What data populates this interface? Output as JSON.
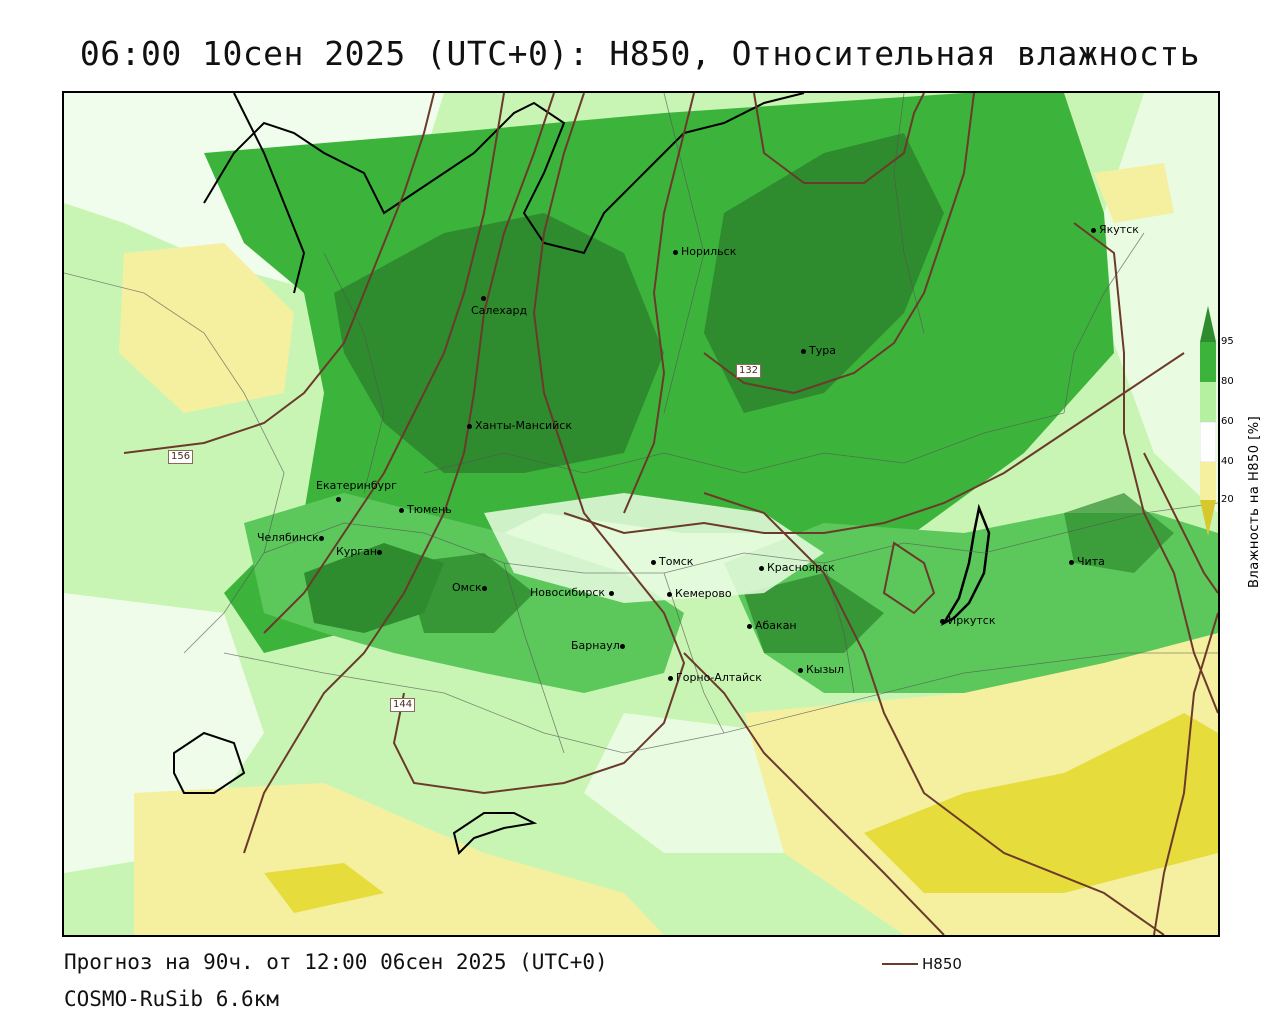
{
  "title": "06:00 10сен 2025 (UTC+0): H850, Относительная влажность",
  "map": {
    "cities": [
      {
        "name": "Салехард"
      },
      {
        "name": "Норильск"
      },
      {
        "name": "Якутск"
      },
      {
        "name": "Тура"
      },
      {
        "name": "Ханты-Мансийск"
      },
      {
        "name": "Екатеринбург"
      },
      {
        "name": "Тюмень"
      },
      {
        "name": "Челябинск"
      },
      {
        "name": "Курган"
      },
      {
        "name": "Омск"
      },
      {
        "name": "Новосибирск"
      },
      {
        "name": "Томск"
      },
      {
        "name": "Кемерово"
      },
      {
        "name": "Красноярск"
      },
      {
        "name": "Барнаул"
      },
      {
        "name": "Абакан"
      },
      {
        "name": "Горно-Алтайск"
      },
      {
        "name": "Кызыл"
      },
      {
        "name": "Иркутск"
      },
      {
        "name": "Чита"
      }
    ],
    "contour_labels": [
      "132",
      "156",
      "144"
    ]
  },
  "colorbar": {
    "ticks": [
      "95",
      "80",
      "60",
      "40",
      "20"
    ],
    "title": "Влажность на H850 [%]",
    "colors": {
      "dark_green": "#2e8b2e",
      "green": "#3cb43c",
      "light_green": "#b4f0a0",
      "white": "#ffffff",
      "light_yellow": "#f5f0a0",
      "yellow": "#e6dc3c"
    }
  },
  "footer": {
    "forecast": "Прогноз на 90ч. от 12:00 06сен 2025 (UTC+0)",
    "model": "COSMO-RuSib 6.6км"
  },
  "legend": {
    "label": "H850",
    "color": "#6b3a2a"
  }
}
